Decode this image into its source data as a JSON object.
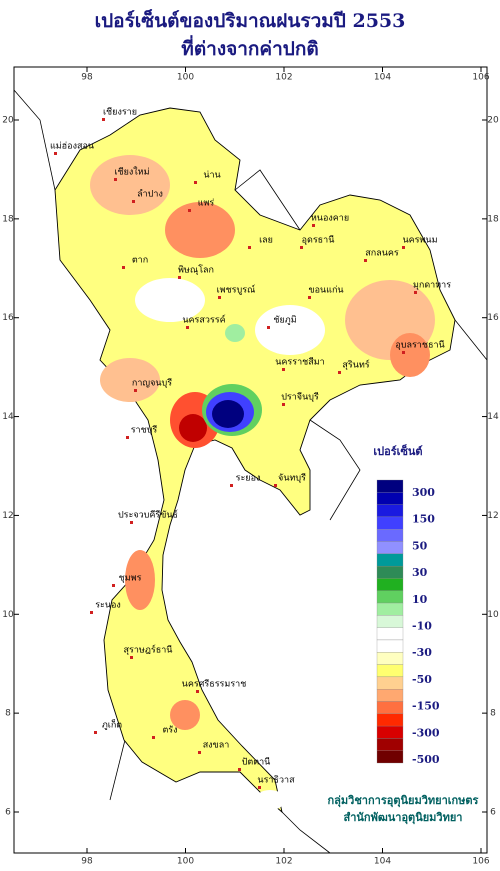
{
  "header": {
    "title": [
      "เปอร์เซ็นต์ของปริมาณฝนรวมปี 2553",
      "ที่ต่างจากค่าปกติ"
    ]
  },
  "map": {
    "lon_ticks": [
      98,
      100,
      102,
      104,
      106
    ],
    "lat_ticks": [
      20,
      18,
      16,
      14,
      12,
      10,
      8,
      6
    ],
    "places": [
      "เชียงราย",
      "แม่ฮ่องสอน",
      "เชียงใหม่",
      "ลำปาง",
      "น่าน",
      "แพร่",
      "ตาก",
      "พิษณุโลก",
      "เพชรบูรณ์",
      "เลย",
      "หนองคาย",
      "อุดรธานี",
      "สกลนคร",
      "นครพนม",
      "มุกดาหาร",
      "ขอนแก่น",
      "ชัยภูมิ",
      "นครสวรรค์",
      "นครราชสีมา",
      "สุรินทร์",
      "อุบลราชธานี",
      "กาญจนบุรี",
      "ราชบุรี",
      "ปราจีนบุรี",
      "ระยอง",
      "จันทบุรี",
      "ประจวบคีรีขันธ์",
      "ชุมพร",
      "ระนอง",
      "สุราษฎร์ธานี",
      "นครศรีธรรมราช",
      "ภูเก็ต",
      "ตรัง",
      "สงขลา",
      "ปัตตานี",
      "นราธิวาส"
    ]
  },
  "legend": {
    "title": "เปอร์เซ็นต์",
    "labels": [
      300,
      150,
      50,
      30,
      10,
      -10,
      -30,
      -50,
      -150,
      -300,
      -500
    ],
    "colors": [
      "#00007f",
      "#0000b0",
      "#1a1ae0",
      "#4040ff",
      "#6a6aff",
      "#9090ff",
      "#009a9a",
      "#2e8b57",
      "#20b020",
      "#60d060",
      "#a0eea0",
      "#d8f8d8",
      "#ffffff",
      "#ffffff",
      "#ffffc0",
      "#ffff70",
      "#ffd090",
      "#ffa870",
      "#ff7040",
      "#ff2a00",
      "#d80000",
      "#a00000",
      "#700000"
    ]
  },
  "credits": [
    "กลุ่มวิชาการอุตุนิยมวิทยาเกษตร",
    "สำนักพัฒนาอุตุนิยมวิทยา"
  ]
}
